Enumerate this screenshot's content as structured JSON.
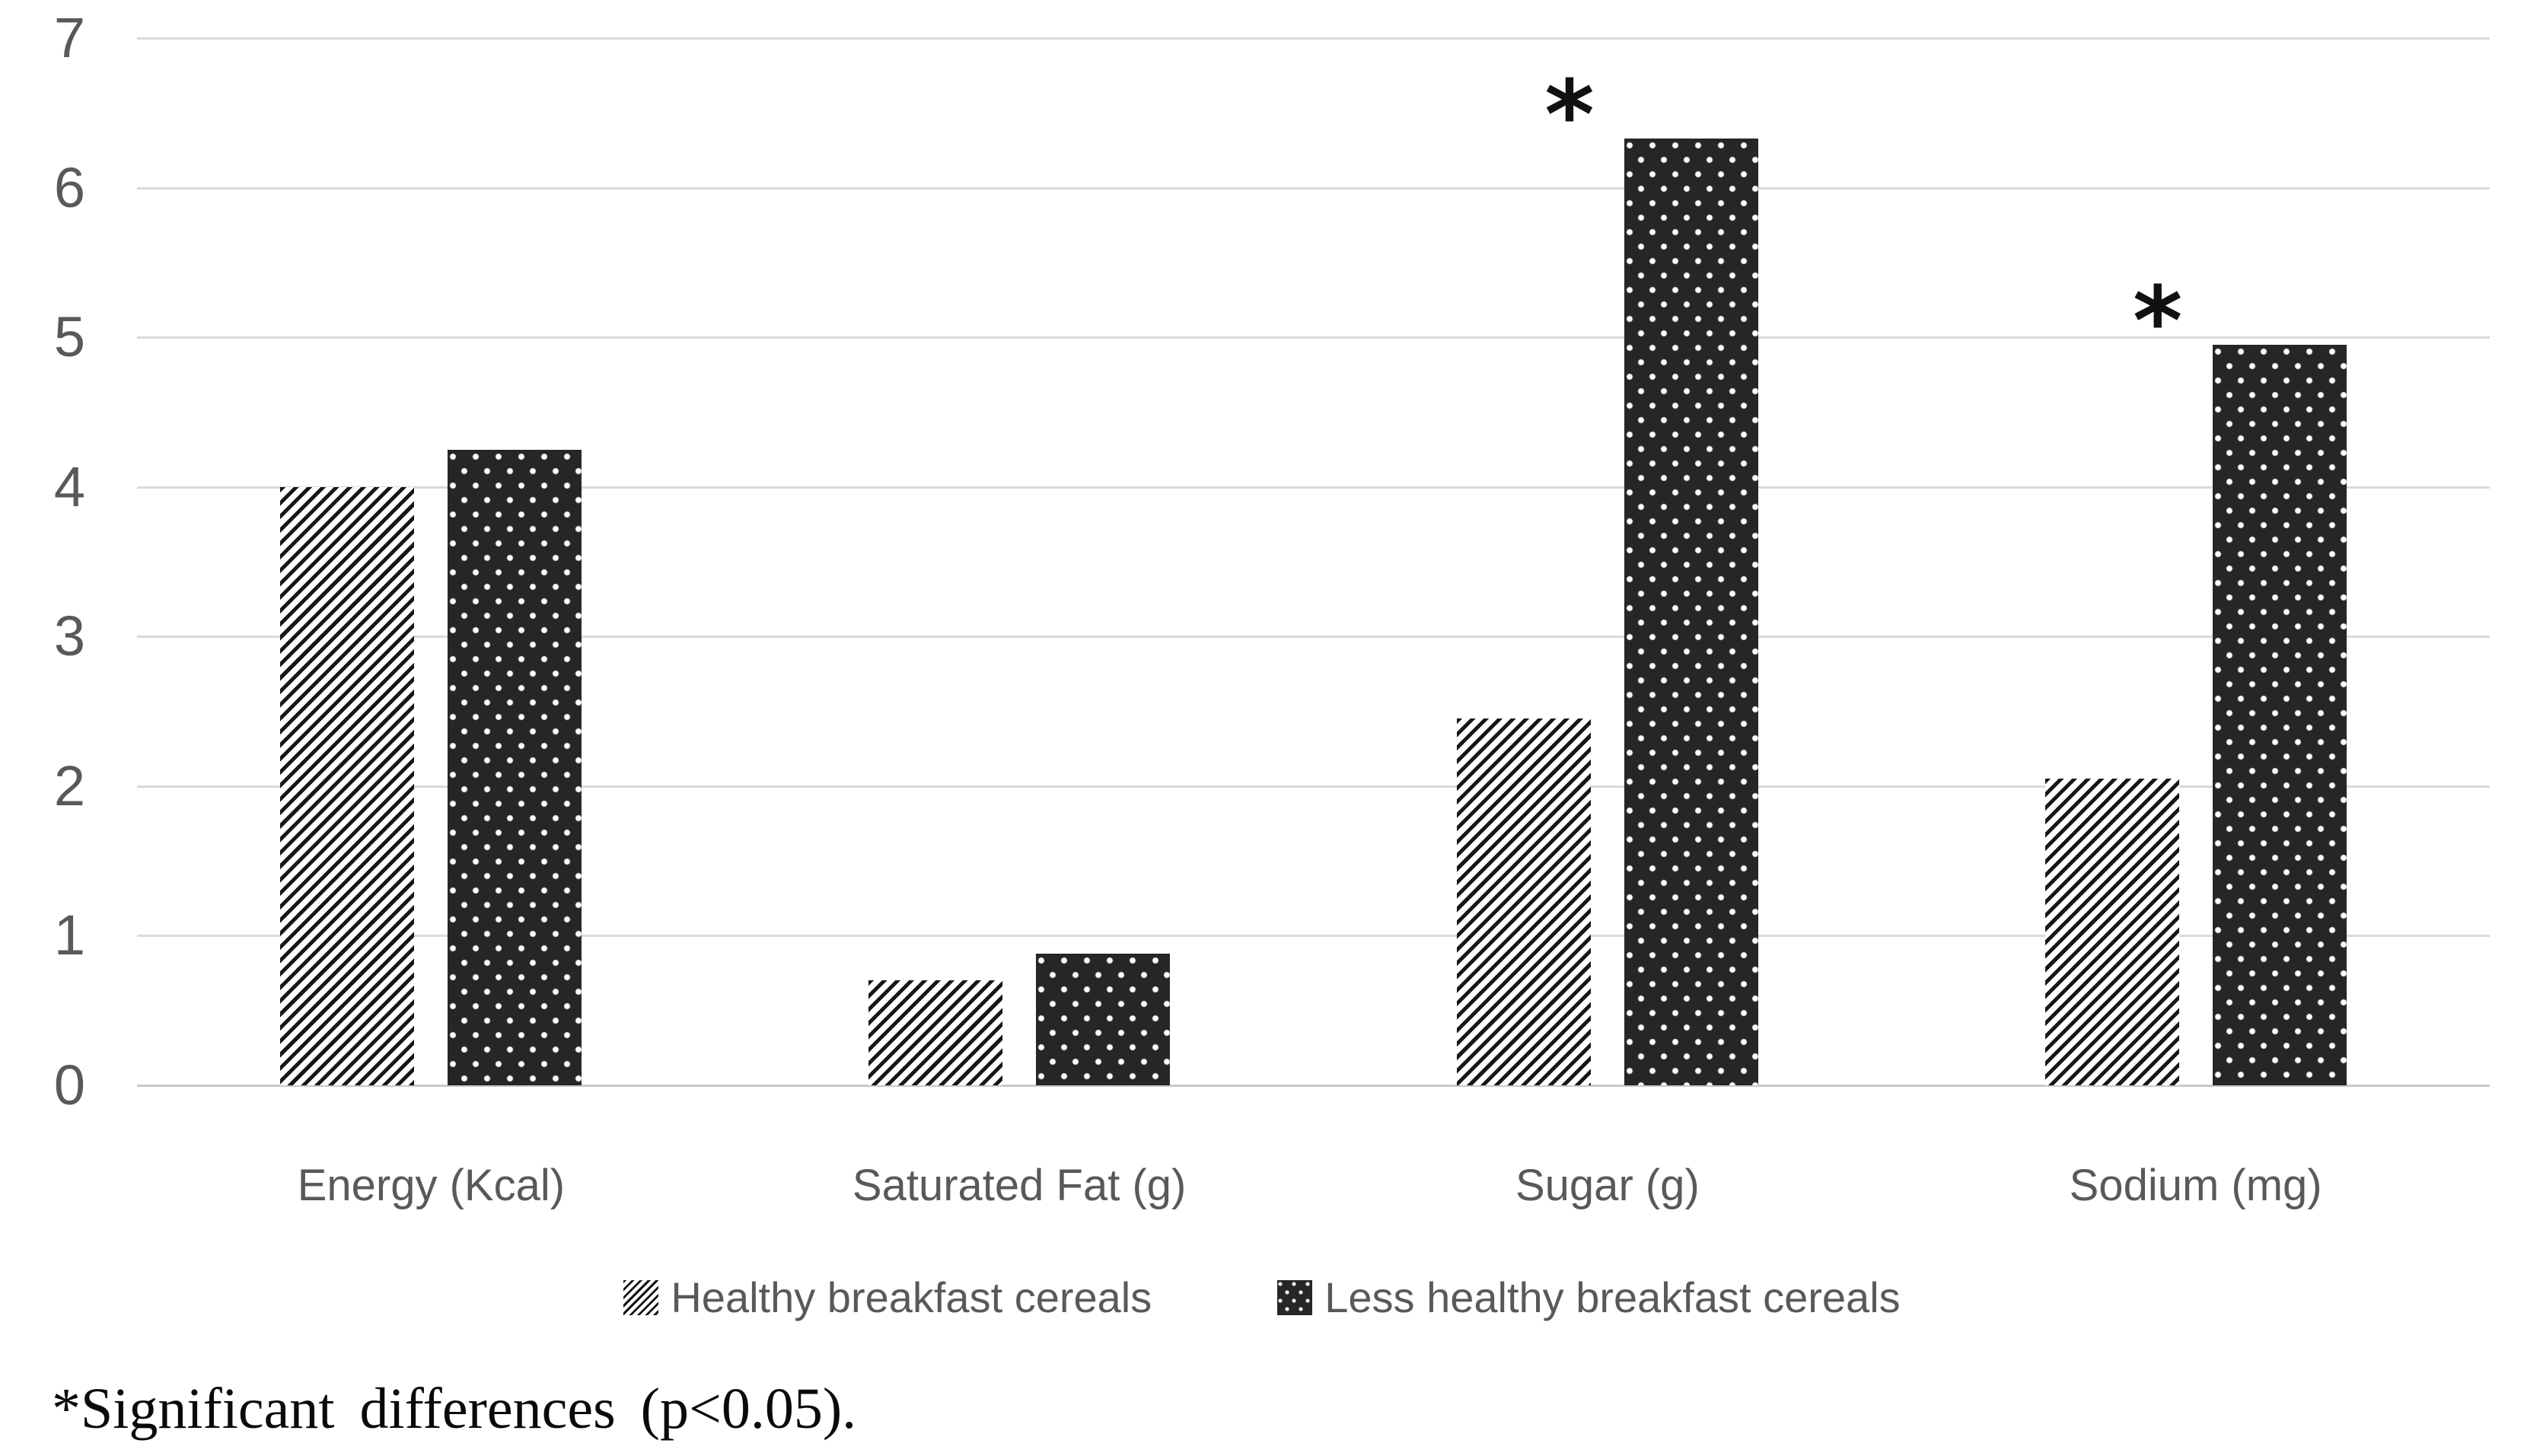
{
  "chart_data": {
    "type": "bar",
    "title": "",
    "categories": [
      "Energy (Kcal)",
      "Saturated Fat (g)",
      "Sugar (g)",
      "Sodium (mg)"
    ],
    "series": [
      {
        "name": "Healthy breakfast cereals",
        "pattern": "diagonal-hatch",
        "values": [
          4.0,
          0.7,
          2.45,
          2.05
        ]
      },
      {
        "name": "Less healthy breakfast cereals",
        "pattern": "dark-dotted",
        "values": [
          4.25,
          0.88,
          6.33,
          4.95
        ]
      }
    ],
    "significant_categories": [
      "Sugar (g)",
      "Sodium (mg)"
    ],
    "significance_marker": "*",
    "xlabel": "",
    "ylabel": "",
    "y_axis": {
      "min": 0,
      "max": 7,
      "step": 1,
      "ticks": [
        0,
        1,
        2,
        3,
        4,
        5,
        6,
        7
      ]
    },
    "grid": true,
    "legend_position": "bottom",
    "footnote": "*Significant differences (p<0.05)."
  },
  "colors": {
    "background": "#ffffff",
    "bar_dark_fill": "#262626",
    "bar_dot": "#ffffff",
    "hatch_stripe": "#171717",
    "hatch_background": "#ffffff",
    "gridline": "#d9d9d9",
    "axis_text": "#595959",
    "footnote_text": "#0a0a0a",
    "asterisk": "#111111"
  }
}
